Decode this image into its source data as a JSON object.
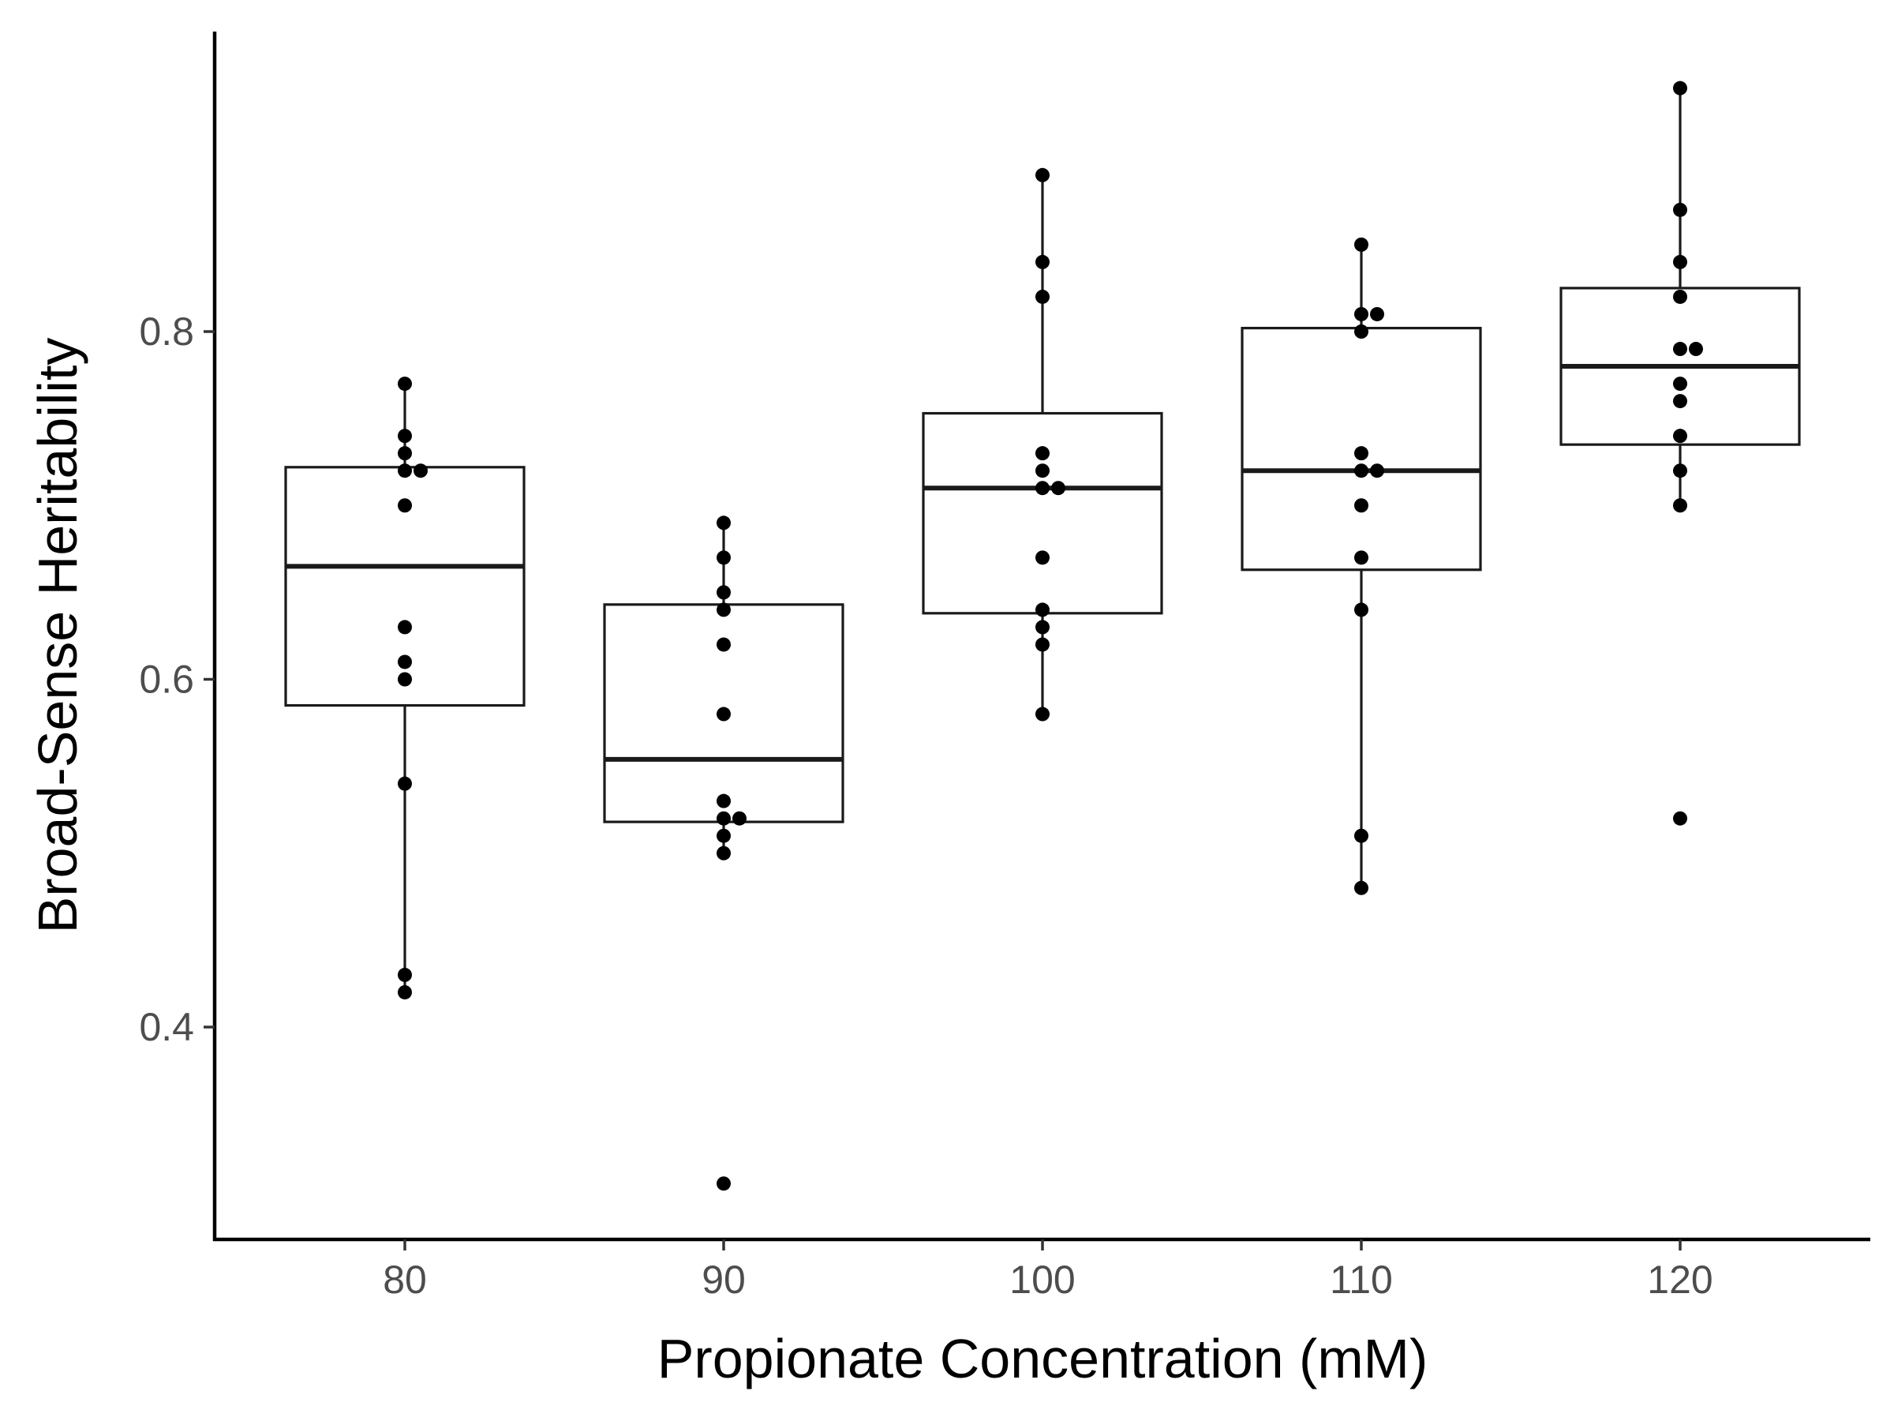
{
  "chart_data": {
    "type": "boxplot",
    "title": "",
    "xlabel": "Propionate Concentration (mM)",
    "ylabel": "Broad-Sense Heritability",
    "ylim": [
      0.28,
      0.97
    ],
    "y_ticks": [
      0.4,
      0.6,
      0.8
    ],
    "y_tick_labels": [
      "0.4",
      "0.6",
      "0.8"
    ],
    "grid": false,
    "categories": [
      "80",
      "90",
      "100",
      "110",
      "120"
    ],
    "boxes": [
      {
        "category": "80",
        "q1": 0.585,
        "median": 0.665,
        "q3": 0.722,
        "whisker_low": 0.42,
        "whisker_high": 0.77
      },
      {
        "category": "90",
        "q1": 0.518,
        "median": 0.554,
        "q3": 0.643,
        "whisker_low": 0.5,
        "whisker_high": 0.69
      },
      {
        "category": "100",
        "q1": 0.638,
        "median": 0.71,
        "q3": 0.753,
        "whisker_low": 0.58,
        "whisker_high": 0.89
      },
      {
        "category": "110",
        "q1": 0.663,
        "median": 0.72,
        "q3": 0.802,
        "whisker_low": 0.48,
        "whisker_high": 0.85
      },
      {
        "category": "120",
        "q1": 0.735,
        "median": 0.78,
        "q3": 0.825,
        "whisker_low": 0.7,
        "whisker_high": 0.94
      }
    ],
    "points": [
      {
        "category": "80",
        "values": [
          0.77,
          0.74,
          0.73,
          0.72,
          0.72,
          0.7,
          0.63,
          0.61,
          0.6,
          0.54,
          0.43,
          0.42
        ]
      },
      {
        "category": "90",
        "values": [
          0.69,
          0.67,
          0.65,
          0.64,
          0.62,
          0.58,
          0.53,
          0.52,
          0.52,
          0.51,
          0.5,
          0.31
        ]
      },
      {
        "category": "100",
        "values": [
          0.89,
          0.84,
          0.82,
          0.73,
          0.72,
          0.71,
          0.71,
          0.67,
          0.64,
          0.63,
          0.62,
          0.58
        ]
      },
      {
        "category": "110",
        "values": [
          0.85,
          0.81,
          0.81,
          0.8,
          0.73,
          0.72,
          0.72,
          0.7,
          0.67,
          0.64,
          0.51,
          0.48
        ]
      },
      {
        "category": "120",
        "values": [
          0.94,
          0.87,
          0.84,
          0.82,
          0.79,
          0.79,
          0.77,
          0.76,
          0.74,
          0.72,
          0.7,
          0.52
        ]
      }
    ],
    "colors": {
      "box_stroke": "#1a1a1a",
      "median": "#1a1a1a",
      "point": "#000000",
      "axis": "#000000",
      "tick_label": "#4d4d4d"
    }
  }
}
